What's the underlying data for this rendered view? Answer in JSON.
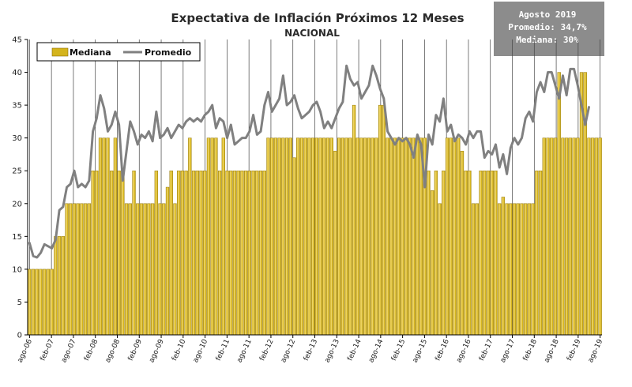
{
  "chart_data": {
    "type": "bar",
    "title": "Expectativa de Inflación Próximos 12 Meses",
    "subtitle": "NACIONAL",
    "ylim": [
      0,
      45
    ],
    "yticks": [
      0,
      5,
      10,
      15,
      20,
      25,
      30,
      35,
      40,
      45
    ],
    "x_tick_labels": [
      "ago-06",
      "feb-07",
      "ago-07",
      "feb-08",
      "ago-08",
      "feb-09",
      "ago-09",
      "feb-10",
      "ago-10",
      "feb-11",
      "ago-11",
      "feb-12",
      "ago-12",
      "feb-13",
      "ago-13",
      "feb-14",
      "ago-14",
      "feb-15",
      "ago-15",
      "feb-16",
      "ago-16",
      "feb-17",
      "ago-17",
      "feb-18",
      "ago-18",
      "feb-19",
      "ago-19"
    ],
    "grid": "vertical",
    "legend_position": "top-left",
    "note": {
      "line1": "Agosto 2019",
      "line2": "Promedio: 34,7%",
      "line3": "Mediana: 30%"
    },
    "colors": {
      "bar_fill": "#d4b41c",
      "bar_highlight": "#f0d66a",
      "bar_edge": "#8a6d00",
      "line": "#808080",
      "note_bg": "#8c8c8c",
      "grid": "#444444"
    },
    "series": [
      {
        "name": "Mediana",
        "type": "bar",
        "values": [
          10,
          10,
          10,
          10,
          10,
          10,
          10,
          15,
          15,
          15,
          20,
          20,
          20,
          20,
          20,
          20,
          20,
          25,
          25,
          30,
          30,
          30,
          25,
          30,
          25,
          25,
          20,
          20,
          25,
          20,
          20,
          20,
          20,
          20,
          25,
          20,
          20,
          22.5,
          25,
          20,
          25,
          25,
          25,
          30,
          25,
          25,
          25,
          25,
          30,
          30,
          30,
          25,
          30,
          25,
          25,
          25,
          25,
          25,
          25,
          25,
          25,
          25,
          25,
          25,
          30,
          30,
          30,
          30,
          30,
          30,
          30,
          27,
          30,
          30,
          30,
          30,
          30,
          30,
          30,
          30,
          30,
          30,
          28,
          30,
          30,
          30,
          30,
          35,
          30,
          30,
          30,
          30,
          30,
          30,
          35,
          35,
          30,
          30,
          30,
          30,
          30,
          30,
          30,
          30,
          30,
          30,
          30,
          25,
          22,
          25,
          20,
          25,
          30,
          30,
          30,
          30,
          28,
          25,
          25,
          20,
          20,
          25,
          25,
          25,
          25,
          25,
          20,
          21,
          20,
          20,
          20,
          20,
          20,
          20,
          20,
          20,
          25,
          25,
          30,
          30,
          30,
          30,
          40,
          30,
          30,
          30,
          30,
          30,
          40,
          40,
          30,
          30,
          30,
          30
        ]
      },
      {
        "name": "Promedio",
        "type": "line",
        "values": [
          14,
          12,
          11.8,
          12.5,
          13.8,
          13.5,
          13.2,
          14.5,
          19,
          19.5,
          22.5,
          23,
          25,
          22.5,
          23,
          22.5,
          23.5,
          31,
          33,
          36.5,
          34.5,
          31,
          32,
          34,
          32,
          23.5,
          28,
          32.5,
          31,
          29,
          30.5,
          30,
          31,
          29.5,
          34,
          30,
          30.5,
          31.5,
          30,
          31,
          32,
          31.5,
          32.5,
          33,
          32.5,
          33,
          32.5,
          33.5,
          34,
          35,
          31.5,
          33,
          32.5,
          30,
          32,
          29,
          29.5,
          30,
          30,
          31,
          33.5,
          30.5,
          31,
          35,
          37,
          34,
          35,
          36,
          39.5,
          35,
          35.5,
          36.5,
          34.5,
          33,
          33.5,
          34,
          35,
          35.5,
          34,
          31.5,
          32.5,
          31.5,
          33,
          34.5,
          35.5,
          41,
          39,
          38,
          38.5,
          36,
          37,
          38,
          41,
          39.5,
          37.5,
          36,
          31,
          30,
          29,
          30,
          29.5,
          30,
          29,
          27,
          30.5,
          29,
          22.5,
          30.5,
          29,
          33.5,
          32.5,
          36,
          31,
          32,
          29.5,
          30.5,
          30,
          29,
          31,
          30,
          31,
          31,
          27,
          28,
          27.5,
          29,
          25.5,
          27.5,
          24.5,
          28.5,
          30,
          29,
          30,
          33,
          34,
          32.5,
          37,
          38.5,
          37,
          40,
          40,
          38,
          36,
          39.5,
          36.5,
          40.5,
          40.5,
          38,
          35,
          32,
          34.7
        ]
      }
    ]
  }
}
